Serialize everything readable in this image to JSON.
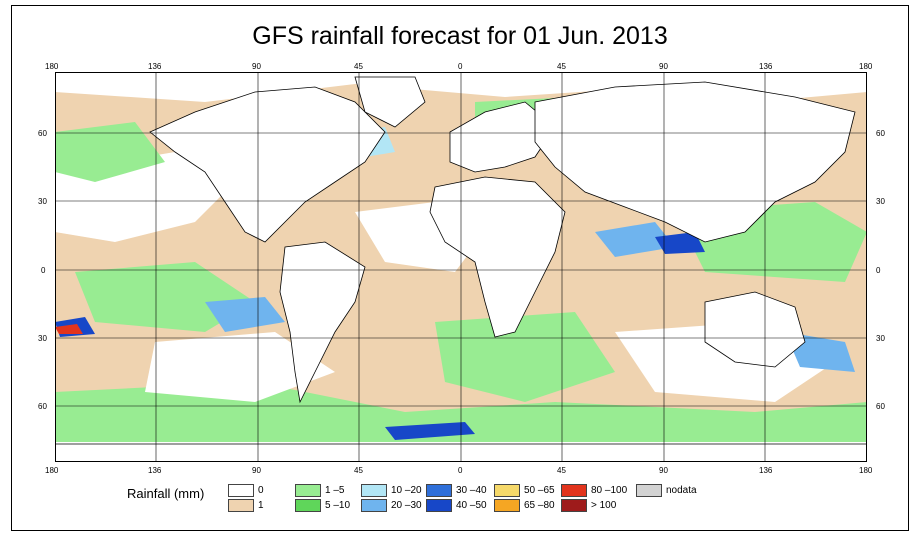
{
  "title": "GFS rainfall forecast for 01 Jun. 2013",
  "map": {
    "lon_ticks_top": [
      "180",
      "136",
      "90",
      "45",
      "0",
      "45",
      "90",
      "136",
      "180"
    ],
    "lon_ticks_bottom": [
      "180",
      "136",
      "90",
      "45",
      "0",
      "45",
      "90",
      "136",
      "180"
    ],
    "lat_ticks_left": [
      "60",
      "30",
      "0",
      "30",
      "60"
    ],
    "lat_ticks_right": [
      "60",
      "30",
      "0",
      "30",
      "60"
    ]
  },
  "legend": {
    "title": "Rainfall (mm)",
    "items": [
      {
        "label": "0",
        "color": "#ffffff"
      },
      {
        "label": "1",
        "color": "#efd3b0"
      },
      {
        "label": "1 –5",
        "color": "#98ec92"
      },
      {
        "label": "5 –10",
        "color": "#5fd65a"
      },
      {
        "label": "10 –20",
        "color": "#b2e6f5"
      },
      {
        "label": "20 –30",
        "color": "#6fb4ee"
      },
      {
        "label": "30 –40",
        "color": "#2f6fd9"
      },
      {
        "label": "40 –50",
        "color": "#1747c8"
      },
      {
        "label": "50 –65",
        "color": "#f6d96a"
      },
      {
        "label": "65 –80",
        "color": "#f5a623"
      },
      {
        "label": "80 –100",
        "color": "#e2341d"
      },
      {
        "label": "> 100",
        "color": "#9e1b1b"
      },
      {
        "label": "nodata",
        "color": "#d3d3d3"
      }
    ]
  },
  "colors": {
    "ocean_light": "#efd3b0",
    "land": "#ffffff",
    "rain_light": "#98ec92",
    "rain_blue": "#6fb4ee",
    "rain_dark": "#1747c8",
    "rain_red": "#e2341d"
  }
}
